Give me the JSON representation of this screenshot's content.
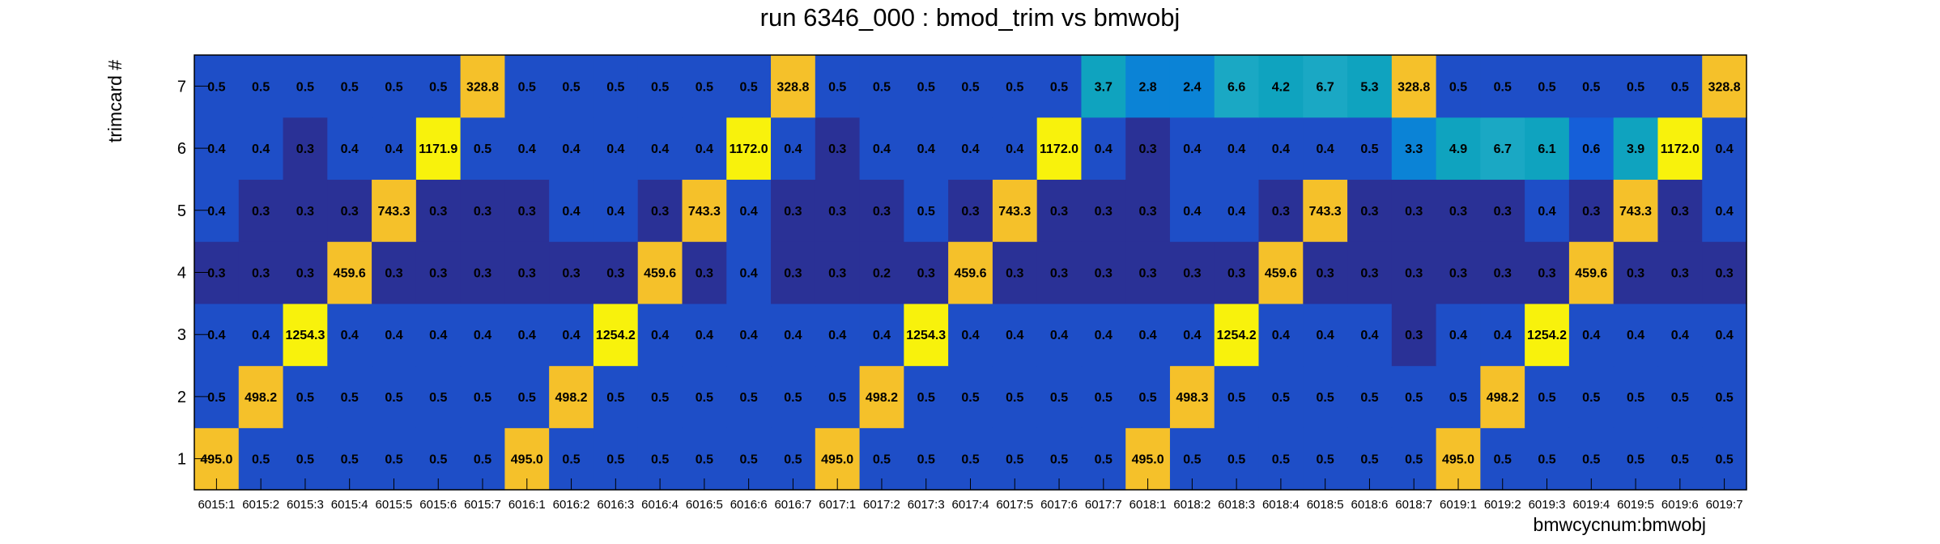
{
  "chart_data": {
    "type": "heatmap",
    "title": "run 6346_000 : bmod_trim vs bmwobj",
    "xlabel": "bmwcycnum:bmwobj",
    "ylabel": "trimcard #",
    "x_categories": [
      "6015:1",
      "6015:2",
      "6015:3",
      "6015:4",
      "6015:5",
      "6015:6",
      "6015:7",
      "6016:1",
      "6016:2",
      "6016:3",
      "6016:4",
      "6016:5",
      "6016:6",
      "6016:7",
      "6017:1",
      "6017:2",
      "6017:3",
      "6017:4",
      "6017:5",
      "6017:6",
      "6017:7",
      "6018:1",
      "6018:2",
      "6018:3",
      "6018:4",
      "6018:5",
      "6018:6",
      "6018:7",
      "6019:1",
      "6019:2",
      "6019:3",
      "6019:4",
      "6019:5",
      "6019:6",
      "6019:7"
    ],
    "y_categories": [
      "1",
      "2",
      "3",
      "4",
      "5",
      "6",
      "7"
    ],
    "values": [
      [
        "495.0",
        "0.5",
        "0.5",
        "0.5",
        "0.5",
        "0.5",
        "0.5",
        "495.0",
        "0.5",
        "0.5",
        "0.5",
        "0.5",
        "0.5",
        "0.5",
        "495.0",
        "0.5",
        "0.5",
        "0.5",
        "0.5",
        "0.5",
        "0.5",
        "495.0",
        "0.5",
        "0.5",
        "0.5",
        "0.5",
        "0.5",
        "0.5",
        "495.0",
        "0.5",
        "0.5",
        "0.5",
        "0.5",
        "0.5",
        "0.5"
      ],
      [
        "0.5",
        "498.2",
        "0.5",
        "0.5",
        "0.5",
        "0.5",
        "0.5",
        "0.5",
        "498.2",
        "0.5",
        "0.5",
        "0.5",
        "0.5",
        "0.5",
        "0.5",
        "498.2",
        "0.5",
        "0.5",
        "0.5",
        "0.5",
        "0.5",
        "0.5",
        "498.3",
        "0.5",
        "0.5",
        "0.5",
        "0.5",
        "0.5",
        "0.5",
        "498.2",
        "0.5",
        "0.5",
        "0.5",
        "0.5",
        "0.5"
      ],
      [
        "0.4",
        "0.4",
        "1254.3",
        "0.4",
        "0.4",
        "0.4",
        "0.4",
        "0.4",
        "0.4",
        "1254.2",
        "0.4",
        "0.4",
        "0.4",
        "0.4",
        "0.4",
        "0.4",
        "1254.3",
        "0.4",
        "0.4",
        "0.4",
        "0.4",
        "0.4",
        "0.4",
        "1254.2",
        "0.4",
        "0.4",
        "0.4",
        "0.3",
        "0.4",
        "0.4",
        "1254.2",
        "0.4",
        "0.4",
        "0.4",
        "0.4"
      ],
      [
        "0.3",
        "0.3",
        "0.3",
        "459.6",
        "0.3",
        "0.3",
        "0.3",
        "0.3",
        "0.3",
        "0.3",
        "459.6",
        "0.3",
        "0.4",
        "0.3",
        "0.3",
        "0.2",
        "0.3",
        "459.6",
        "0.3",
        "0.3",
        "0.3",
        "0.3",
        "0.3",
        "0.3",
        "459.6",
        "0.3",
        "0.3",
        "0.3",
        "0.3",
        "0.3",
        "0.3",
        "459.6",
        "0.3",
        "0.3",
        "0.3"
      ],
      [
        "0.4",
        "0.3",
        "0.3",
        "0.3",
        "743.3",
        "0.3",
        "0.3",
        "0.3",
        "0.4",
        "0.4",
        "0.3",
        "743.3",
        "0.4",
        "0.3",
        "0.3",
        "0.3",
        "0.5",
        "0.3",
        "743.3",
        "0.3",
        "0.3",
        "0.3",
        "0.4",
        "0.4",
        "0.3",
        "743.3",
        "0.3",
        "0.3",
        "0.3",
        "0.3",
        "0.4",
        "0.3",
        "743.3",
        "0.3",
        "0.4"
      ],
      [
        "0.4",
        "0.4",
        "0.3",
        "0.4",
        "0.4",
        "1171.9",
        "0.5",
        "0.4",
        "0.4",
        "0.4",
        "0.4",
        "0.4",
        "1172.0",
        "0.4",
        "0.3",
        "0.4",
        "0.4",
        "0.4",
        "0.4",
        "1172.0",
        "0.4",
        "0.3",
        "0.4",
        "0.4",
        "0.4",
        "0.4",
        "0.5",
        "3.3",
        "4.9",
        "6.7",
        "6.1",
        "0.6",
        "3.9",
        "1172.0",
        "0.4"
      ],
      [
        "0.5",
        "0.5",
        "0.5",
        "0.5",
        "0.5",
        "0.5",
        "328.8",
        "0.5",
        "0.5",
        "0.5",
        "0.5",
        "0.5",
        "0.5",
        "328.8",
        "0.5",
        "0.5",
        "0.5",
        "0.5",
        "0.5",
        "0.5",
        "3.7",
        "2.8",
        "2.4",
        "6.6",
        "4.2",
        "6.7",
        "5.3",
        "328.8",
        "0.5",
        "0.5",
        "0.5",
        "0.5",
        "0.5",
        "0.5",
        "328.8"
      ]
    ],
    "color_palette": {
      "dark_blue": "#2a3196",
      "blue": "#1e4ec7",
      "mid_blue": "#155fd9",
      "azure": "#0b83d6",
      "teal": "#0fa3bf",
      "cyan_teal": "#1aa8c4",
      "amber": "#f5c12a",
      "yellow": "#f8f20c"
    },
    "grid": false
  }
}
